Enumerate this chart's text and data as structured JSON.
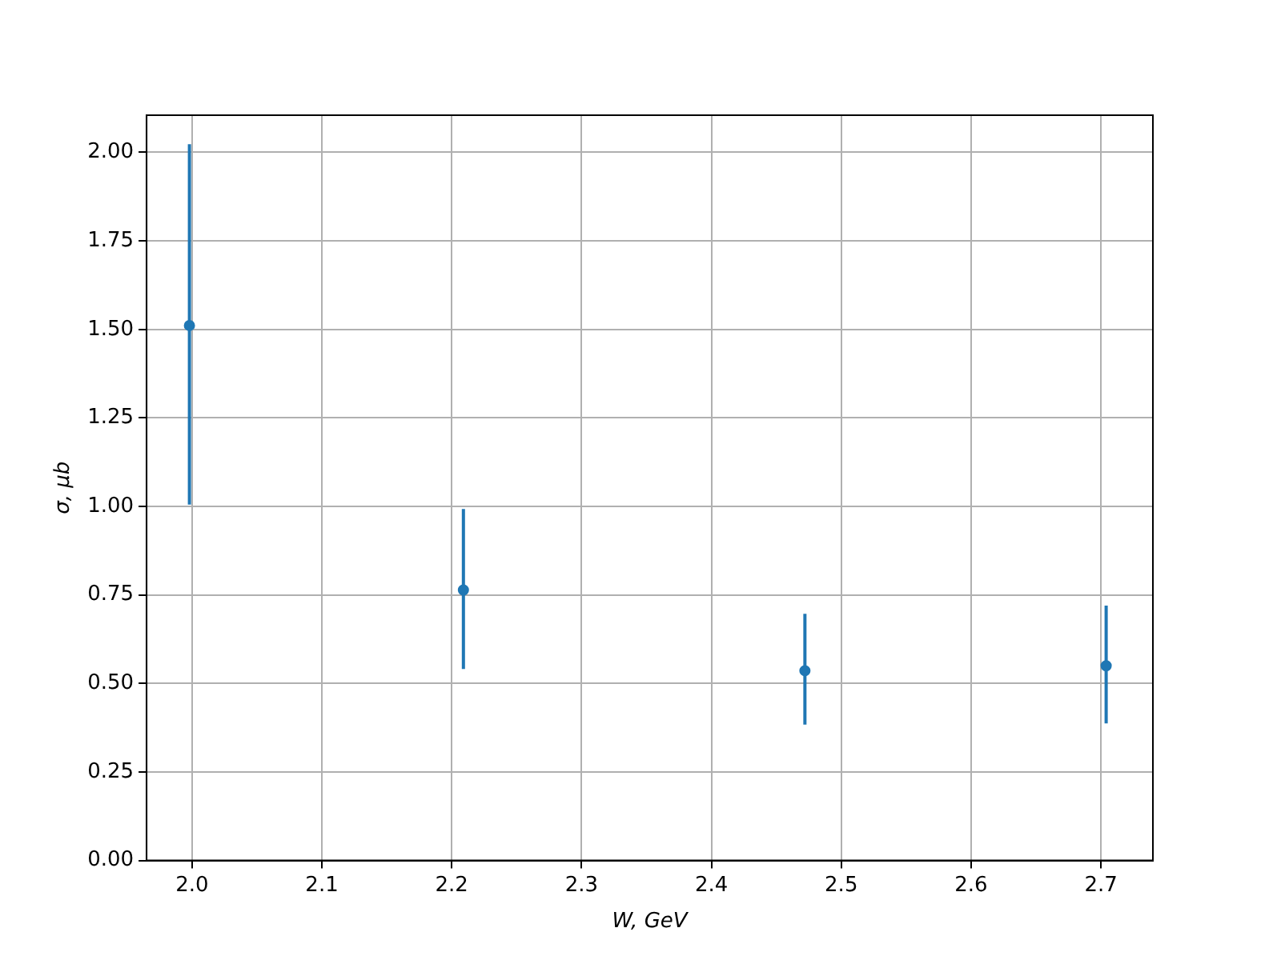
{
  "chart_data": {
    "type": "scatter",
    "xlabel": "W, GeV",
    "ylabel": "σ, μb",
    "x": [
      1.998,
      2.209,
      2.472,
      2.704
    ],
    "series": [
      {
        "color": "#1f77b4",
        "values": [
          1.511,
          0.764,
          0.536,
          0.55
        ],
        "errors": [
          [
            1.005,
            2.023
          ],
          [
            0.541,
            0.993
          ],
          [
            0.384,
            0.697
          ],
          [
            0.387,
            0.72
          ]
        ]
      }
    ],
    "xlim": [
      1.965,
      2.74
    ],
    "xticks": [
      {
        "value": 2.0,
        "label": "2.0"
      },
      {
        "value": 2.1,
        "label": "2.1"
      },
      {
        "value": 2.2,
        "label": "2.2"
      },
      {
        "value": 2.3,
        "label": "2.3"
      },
      {
        "value": 2.4,
        "label": "2.4"
      },
      {
        "value": 2.5,
        "label": "2.5"
      },
      {
        "value": 2.6,
        "label": "2.6"
      },
      {
        "value": 2.7,
        "label": "2.7"
      }
    ],
    "ylim": [
      0,
      2.105
    ],
    "yticks": [
      {
        "value": 0,
        "label": "0.00"
      },
      {
        "value": 0.25,
        "label": "0.25"
      },
      {
        "value": 0.5,
        "label": "0.50"
      },
      {
        "value": 0.75,
        "label": "0.75"
      },
      {
        "value": 1,
        "label": "1.00"
      },
      {
        "value": 1.25,
        "label": "1.25"
      },
      {
        "value": 1.5,
        "label": "1.50"
      },
      {
        "value": 1.75,
        "label": "1.75"
      },
      {
        "value": 2,
        "label": "2.00"
      }
    ],
    "grid": true,
    "marker": "circle"
  }
}
